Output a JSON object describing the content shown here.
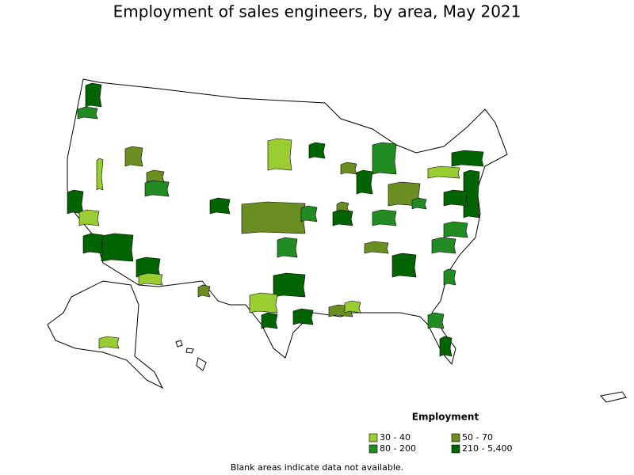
{
  "title": "Employment of sales engineers, by area, May 2021",
  "legend": {
    "title": "Employment",
    "items": [
      {
        "label": "30 - 40",
        "color": "#9acd32"
      },
      {
        "label": "50 - 70",
        "color": "#6b8e23"
      },
      {
        "label": "80 - 200",
        "color": "#228b22"
      },
      {
        "label": "210 - 5,400",
        "color": "#006400"
      }
    ]
  },
  "footnote": "Blank areas indicate data not available."
}
